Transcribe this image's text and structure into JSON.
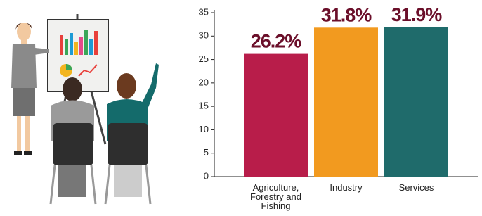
{
  "chart_data": {
    "type": "bar",
    "categories": [
      "Agriculture, Forestry and Fishing",
      "Industry",
      "Services"
    ],
    "values": [
      26.2,
      31.8,
      31.9
    ],
    "value_labels": [
      "26.2%",
      "31.8%",
      "31.9%"
    ],
    "colors": [
      "#b81d4a",
      "#f29a1f",
      "#1f6b6b"
    ],
    "ylim": [
      0,
      35
    ],
    "yticks": [
      0,
      5,
      10,
      15,
      20,
      25,
      30,
      35
    ],
    "grid": false
  }
}
